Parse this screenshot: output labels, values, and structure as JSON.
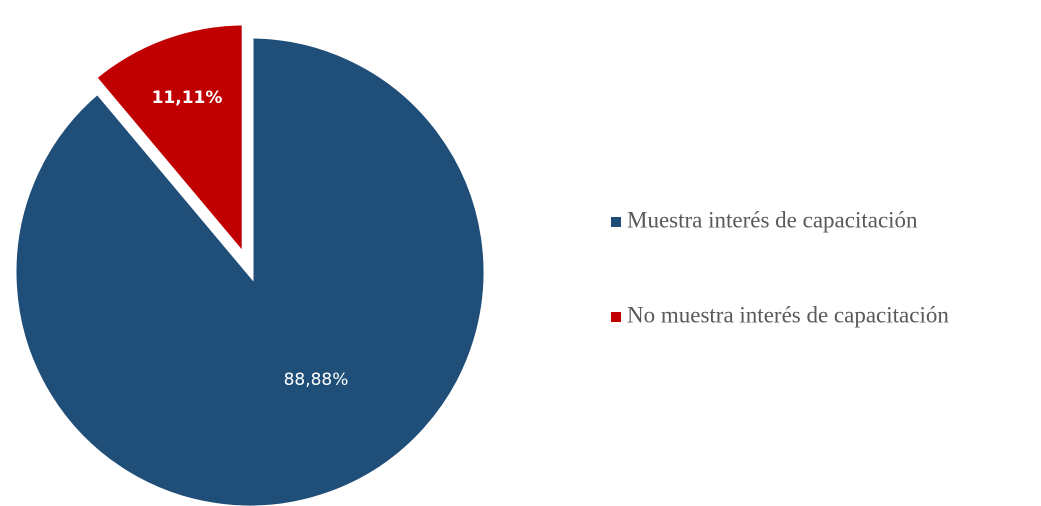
{
  "chart_data": {
    "type": "pie",
    "slices": [
      {
        "label": "Muestra interés de capacitación",
        "value": 88.88,
        "display_label": "88,88%",
        "color": "#1f4e79",
        "label_color": "#ffffff",
        "label_bold": false,
        "exploded": false
      },
      {
        "label": "No muestra interés de capacitación",
        "value": 11.11,
        "display_label": "11,11%",
        "color": "#c00000",
        "label_color": "#ffffff",
        "label_bold": true,
        "exploded": true
      }
    ],
    "legend": {
      "position": "right",
      "items": [
        "Muestra interés de capacitación",
        "No muestra interés de capacitación"
      ]
    },
    "title": "",
    "start_angle": "12 o'clock, clockwise"
  }
}
